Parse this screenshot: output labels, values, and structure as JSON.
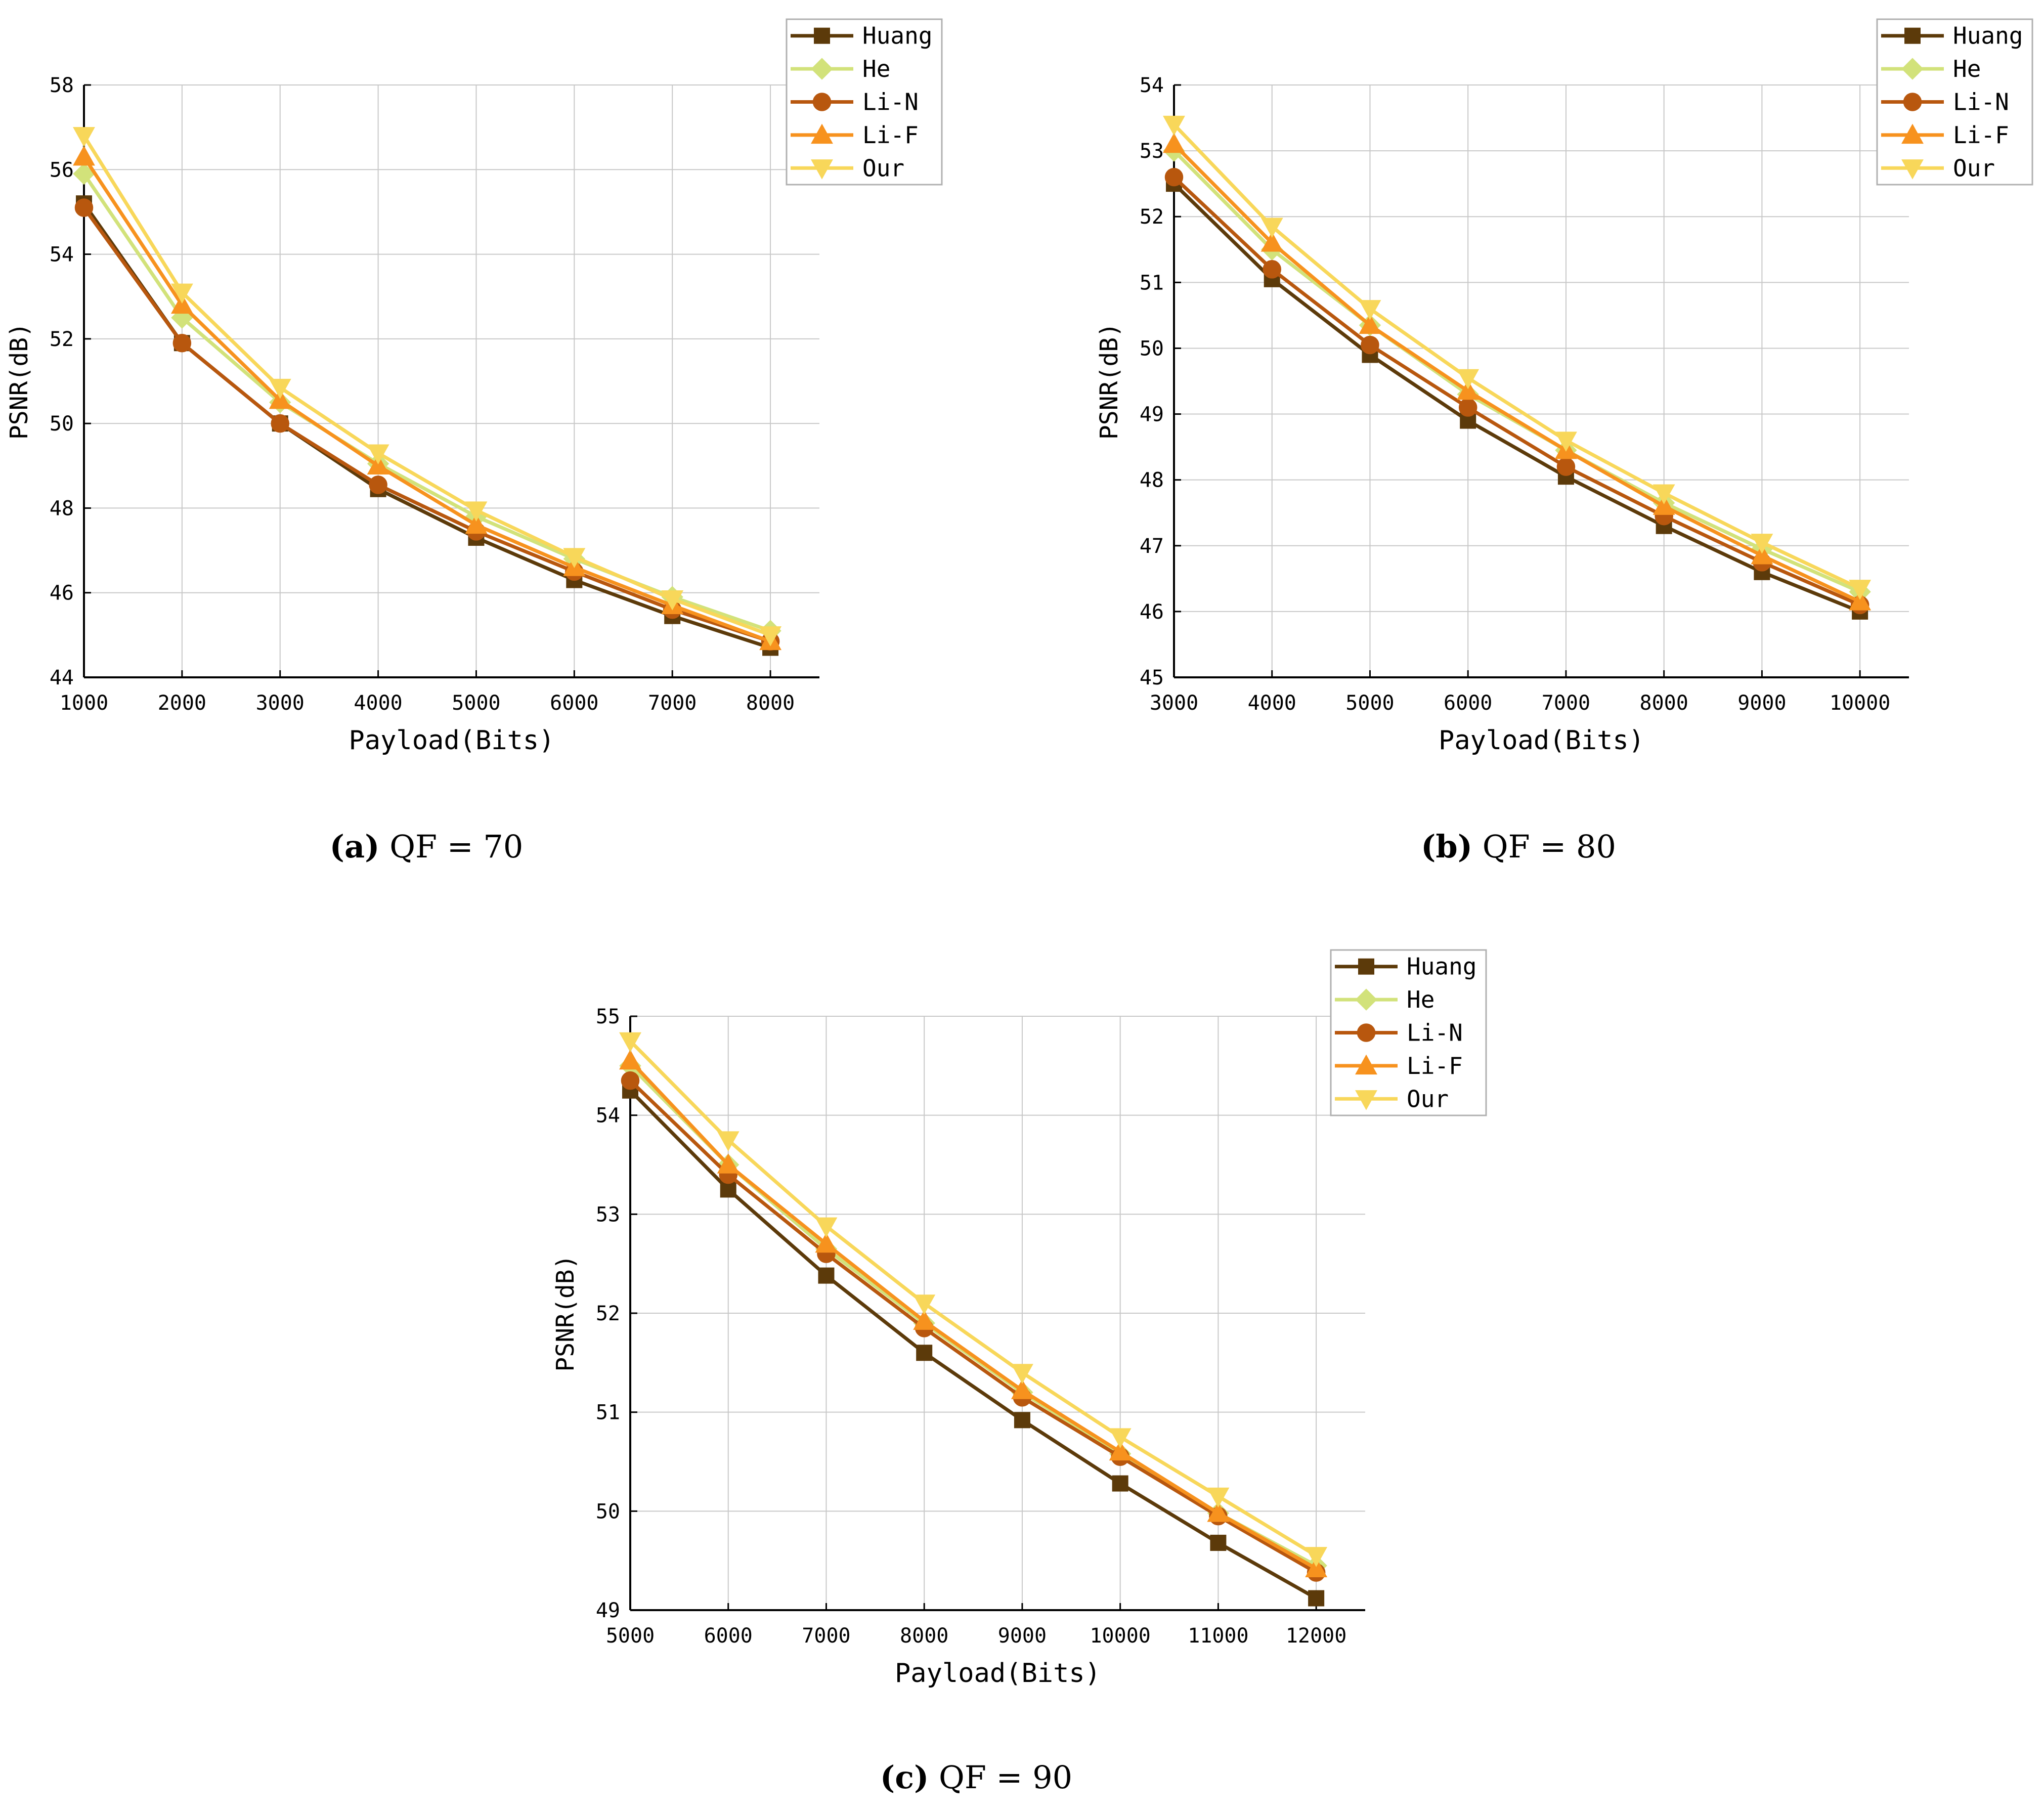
{
  "figure": {
    "series_styles": [
      {
        "name": "Huang",
        "color": "#5c3a0a",
        "marker": "square"
      },
      {
        "name": "He",
        "color": "#d2e27a",
        "marker": "diamond"
      },
      {
        "name": "Li-N",
        "color": "#b8570e",
        "marker": "circle"
      },
      {
        "name": "Li-F",
        "color": "#f7921e",
        "marker": "triangle-up"
      },
      {
        "name": "Our",
        "color": "#f8d75a",
        "marker": "triangle-down"
      }
    ]
  },
  "chart_data": [
    {
      "type": "line",
      "panel_label": "(a)",
      "caption": "QF = 70",
      "xlabel": "Payload(Bits)",
      "ylabel": "PSNR(dB)",
      "xlim": [
        1000,
        8500
      ],
      "ylim": [
        44,
        58
      ],
      "xticks": [
        1000,
        2000,
        3000,
        4000,
        5000,
        6000,
        7000,
        8000
      ],
      "yticks": [
        44,
        46,
        48,
        50,
        52,
        54,
        56,
        58
      ],
      "xtick_labels": [
        "1000",
        "2000",
        "3000",
        "4000",
        "5000",
        "6000",
        "7000",
        "8000"
      ],
      "ytick_labels": [
        "44",
        "46",
        "48",
        "50",
        "52",
        "54",
        "56",
        "58"
      ],
      "grid": true,
      "legend": "top-right",
      "x": [
        1000,
        2000,
        3000,
        4000,
        5000,
        6000,
        7000,
        8000
      ],
      "series": [
        {
          "name": "Huang",
          "values": [
            55.2,
            51.9,
            50.0,
            48.45,
            47.3,
            46.3,
            45.45,
            44.7
          ]
        },
        {
          "name": "He",
          "values": [
            55.9,
            52.5,
            50.5,
            49.05,
            47.8,
            46.8,
            45.9,
            45.1
          ]
        },
        {
          "name": "Li-N",
          "values": [
            55.1,
            51.9,
            50.0,
            48.55,
            47.45,
            46.5,
            45.6,
            44.85
          ]
        },
        {
          "name": "Li-F",
          "values": [
            56.3,
            52.8,
            50.55,
            49.0,
            47.6,
            46.6,
            45.7,
            44.85
          ]
        },
        {
          "name": "Our",
          "values": [
            56.8,
            53.1,
            50.85,
            49.3,
            47.95,
            46.85,
            45.85,
            45.0
          ]
        }
      ]
    },
    {
      "type": "line",
      "panel_label": "(b)",
      "caption": "QF = 80",
      "xlabel": "Payload(Bits)",
      "ylabel": "PSNR(dB)",
      "xlim": [
        3000,
        10500
      ],
      "ylim": [
        45,
        54
      ],
      "xticks": [
        3000,
        4000,
        5000,
        6000,
        7000,
        8000,
        9000,
        10000
      ],
      "yticks": [
        45,
        46,
        47,
        48,
        49,
        50,
        51,
        52,
        53,
        54
      ],
      "xtick_labels": [
        "3000",
        "4000",
        "5000",
        "6000",
        "7000",
        "8000",
        "9000",
        "10000"
      ],
      "ytick_labels": [
        "45",
        "46",
        "47",
        "48",
        "49",
        "50",
        "51",
        "52",
        "53",
        "54"
      ],
      "grid": true,
      "legend": "top-right",
      "x": [
        3000,
        4000,
        5000,
        6000,
        7000,
        8000,
        9000,
        10000
      ],
      "series": [
        {
          "name": "Huang",
          "values": [
            52.5,
            51.05,
            49.9,
            48.9,
            48.05,
            47.3,
            46.6,
            46.0
          ]
        },
        {
          "name": "He",
          "values": [
            53.0,
            51.5,
            50.35,
            49.3,
            48.45,
            47.65,
            46.95,
            46.3
          ]
        },
        {
          "name": "Li-N",
          "values": [
            52.6,
            51.2,
            50.05,
            49.1,
            48.2,
            47.45,
            46.75,
            46.1
          ]
        },
        {
          "name": "Li-F",
          "values": [
            53.1,
            51.6,
            50.35,
            49.35,
            48.45,
            47.6,
            46.85,
            46.15
          ]
        },
        {
          "name": "Our",
          "values": [
            53.4,
            51.85,
            50.6,
            49.55,
            48.6,
            47.8,
            47.05,
            46.35
          ]
        }
      ]
    },
    {
      "type": "line",
      "panel_label": "(c)",
      "caption": "QF = 90",
      "xlabel": "Payload(Bits)",
      "ylabel": "PSNR(dB)",
      "xlim": [
        5000,
        12500
      ],
      "ylim": [
        49,
        55
      ],
      "xticks": [
        5000,
        6000,
        7000,
        8000,
        9000,
        10000,
        11000,
        12000
      ],
      "yticks": [
        49,
        50,
        51,
        52,
        53,
        54,
        55
      ],
      "xtick_labels": [
        "5000",
        "6000",
        "7000",
        "8000",
        "9000",
        "10000",
        "11000",
        "12000"
      ],
      "ytick_labels": [
        "49",
        "50",
        "51",
        "52",
        "53",
        "54",
        "55"
      ],
      "grid": true,
      "legend": "top-right",
      "x": [
        5000,
        6000,
        7000,
        8000,
        9000,
        10000,
        11000,
        12000
      ],
      "series": [
        {
          "name": "Huang",
          "values": [
            54.25,
            53.25,
            52.38,
            51.6,
            50.92,
            50.28,
            49.68,
            49.12
          ]
        },
        {
          "name": "He",
          "values": [
            54.5,
            53.5,
            52.65,
            51.9,
            51.2,
            50.58,
            49.98,
            49.45
          ]
        },
        {
          "name": "Li-N",
          "values": [
            54.35,
            53.4,
            52.6,
            51.85,
            51.15,
            50.55,
            49.95,
            49.38
          ]
        },
        {
          "name": "Li-F",
          "values": [
            54.55,
            53.5,
            52.7,
            51.92,
            51.22,
            50.6,
            49.98,
            49.42
          ]
        },
        {
          "name": "Our",
          "values": [
            54.75,
            53.75,
            52.88,
            52.1,
            51.4,
            50.75,
            50.15,
            49.55
          ]
        }
      ]
    }
  ]
}
